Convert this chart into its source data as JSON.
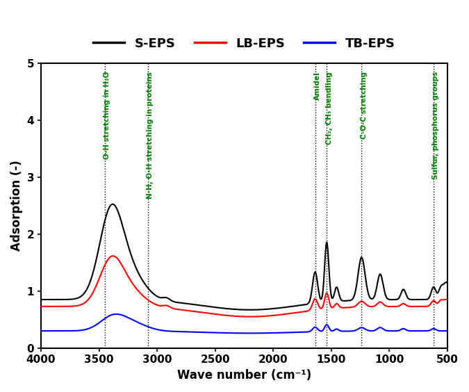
{
  "xlabel": "Wave number (cm⁻¹)",
  "ylabel": "Adsorption (-)",
  "xlim": [
    4000,
    500
  ],
  "ylim": [
    0,
    5
  ],
  "legend_labels": [
    "S-EPS",
    "LB-EPS",
    "TB-EPS"
  ],
  "legend_colors": [
    "black",
    "red",
    "blue"
  ],
  "annotations": [
    {
      "x": 3450,
      "label": "O-H stretching in H₂O"
    },
    {
      "x": 3080,
      "label": "N-H, O-H stretching in proteins"
    },
    {
      "x": 1640,
      "label": "Amidel"
    },
    {
      "x": 1540,
      "label": "CH₂, CH₃ bendling"
    },
    {
      "x": 1240,
      "label": "C-O-C stretching"
    },
    {
      "x": 620,
      "label": "Sulfur, phosphorus groups"
    }
  ],
  "yticks": [
    0,
    1,
    2,
    3,
    4,
    5
  ],
  "xticks": [
    4000,
    3500,
    3000,
    2500,
    2000,
    1500,
    1000,
    500
  ],
  "background": "white",
  "line_width": 1.5
}
